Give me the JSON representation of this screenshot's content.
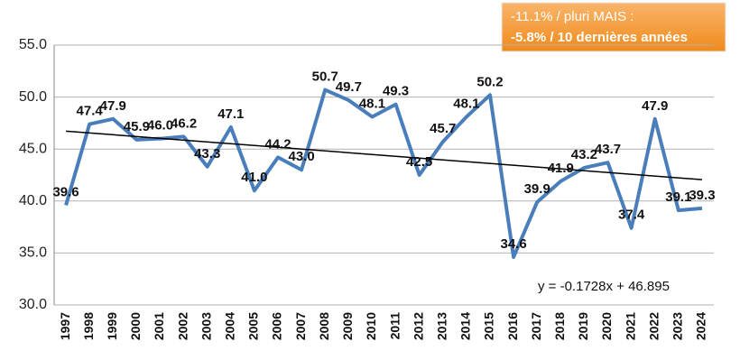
{
  "chart_data": {
    "type": "line",
    "categories": [
      "1997",
      "1998",
      "1999",
      "2000",
      "2001",
      "2002",
      "2003",
      "2004",
      "2005",
      "2006",
      "2007",
      "2008",
      "2009",
      "2010",
      "2011",
      "2012",
      "2013",
      "2014",
      "2015",
      "2016",
      "2017",
      "2018",
      "2019",
      "2020",
      "2021",
      "2022",
      "2023",
      "2024"
    ],
    "series": [
      {
        "color": "#4a7ebb",
        "values": [
          39.6,
          47.4,
          47.9,
          45.9,
          46.0,
          46.2,
          43.3,
          47.1,
          41.0,
          44.2,
          43.0,
          50.7,
          49.7,
          48.1,
          49.3,
          42.5,
          45.7,
          48.1,
          50.2,
          34.6,
          39.9,
          41.9,
          43.2,
          43.7,
          37.4,
          47.9,
          39.1,
          39.3
        ],
        "value_labels": [
          "39.6",
          "47.4",
          "47.9",
          "45.9",
          "46.0",
          "46.2",
          "43.3",
          "47.1",
          "41.0",
          "44.2",
          "43.0",
          "50.7",
          "49.7",
          "48.1",
          "49.3",
          "42.5",
          "45.7",
          "48.1",
          "50.2",
          "34.6",
          "39.9",
          "41.9",
          "43.2",
          "43.7",
          "37.4",
          "47.9",
          "39.1",
          "39.3"
        ]
      }
    ],
    "ylim": [
      30,
      55
    ],
    "yticks": [
      {
        "value": 30,
        "label": "30.0"
      },
      {
        "value": 35,
        "label": "35.0"
      },
      {
        "value": 40,
        "label": "40.0"
      },
      {
        "value": 45,
        "label": "45.0"
      },
      {
        "value": 50,
        "label": "50.0"
      },
      {
        "value": 55,
        "label": "55.0"
      }
    ],
    "grid": true,
    "trendline": {
      "slope": -0.1728,
      "intercept": 46.895,
      "label": "y = -0.1728x + 46.895",
      "color": "#000000"
    },
    "annotations": [
      "-11.1% / pluri MAIS :",
      "-5.8% / 10 dernières années"
    ]
  }
}
